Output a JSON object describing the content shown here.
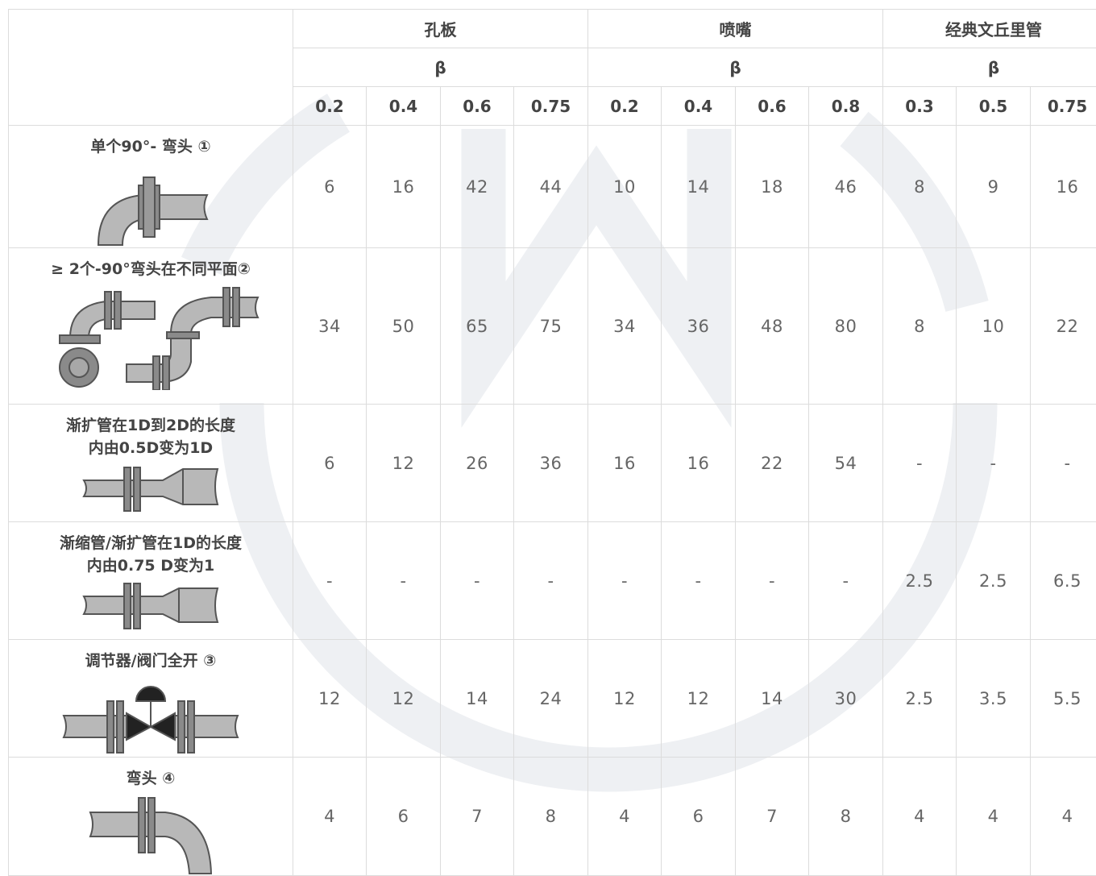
{
  "groups": [
    {
      "name": "孔板",
      "beta": "β",
      "values": [
        "0.2",
        "0.4",
        "0.6",
        "0.75"
      ]
    },
    {
      "name": "喷嘴",
      "beta": "β",
      "values": [
        "0.2",
        "0.4",
        "0.6",
        "0.8"
      ]
    },
    {
      "name": "经典文丘里管",
      "beta": "β",
      "values": [
        "0.3",
        "0.5",
        "0.75"
      ]
    }
  ],
  "rows": [
    {
      "label": [
        "单个90°- 弯头 ①"
      ],
      "icon": "single-90-elbow-icon",
      "cells": [
        "6",
        "16",
        "42",
        "44",
        "10",
        "14",
        "18",
        "46",
        "8",
        "9",
        "16"
      ]
    },
    {
      "label": [
        "≥ 2个-90°弯头在不同平面②"
      ],
      "icon": "double-elbow-different-planes-icon",
      "cells": [
        "34",
        "50",
        "65",
        "75",
        "34",
        "36",
        "48",
        "80",
        "8",
        "10",
        "22"
      ]
    },
    {
      "label": [
        "渐扩管在1D到2D的长度",
        "内由0.5D变为1D"
      ],
      "icon": "expander-icon",
      "cells": [
        "6",
        "12",
        "26",
        "36",
        "16",
        "16",
        "22",
        "54",
        "-",
        "-",
        "-"
      ]
    },
    {
      "label": [
        "渐缩管/渐扩管在1D的长度",
        "内由0.75 D变为1"
      ],
      "icon": "reducer-expander-icon",
      "cells": [
        "-",
        "-",
        "-",
        "-",
        "-",
        "-",
        "-",
        "-",
        "2.5",
        "2.5",
        "6.5"
      ]
    },
    {
      "label": [
        "调节器/阀门全开 ③"
      ],
      "icon": "control-valve-icon",
      "cells": [
        "12",
        "12",
        "14",
        "24",
        "12",
        "12",
        "14",
        "30",
        "2.5",
        "3.5",
        "5.5"
      ]
    },
    {
      "label": [
        "弯头 ④"
      ],
      "icon": "elbow-icon",
      "cells": [
        "4",
        "6",
        "7",
        "8",
        "4",
        "6",
        "7",
        "8",
        "4",
        "4",
        "4"
      ]
    }
  ],
  "colors": {
    "border": "#dcdcdc",
    "pipe_fill": "#b8b8b8",
    "pipe_stroke": "#555555",
    "watermark": "#f0f0f2"
  }
}
